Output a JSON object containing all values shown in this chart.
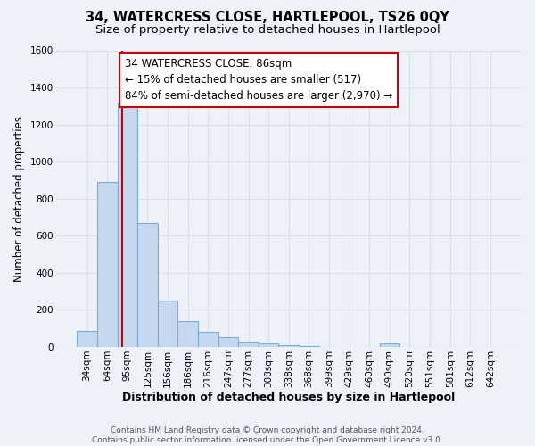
{
  "title": "34, WATERCRESS CLOSE, HARTLEPOOL, TS26 0QY",
  "subtitle": "Size of property relative to detached houses in Hartlepool",
  "xlabel": "Distribution of detached houses by size in Hartlepool",
  "ylabel": "Number of detached properties",
  "bar_labels": [
    "34sqm",
    "64sqm",
    "95sqm",
    "125sqm",
    "156sqm",
    "186sqm",
    "216sqm",
    "247sqm",
    "277sqm",
    "308sqm",
    "338sqm",
    "368sqm",
    "399sqm",
    "429sqm",
    "460sqm",
    "490sqm",
    "520sqm",
    "551sqm",
    "581sqm",
    "612sqm",
    "642sqm"
  ],
  "bar_values": [
    88,
    890,
    1320,
    670,
    250,
    140,
    80,
    52,
    30,
    20,
    10,
    5,
    0,
    0,
    0,
    18,
    0,
    0,
    0,
    0,
    0
  ],
  "bar_color": "#c5d8f0",
  "bar_edge_color": "#7aadd4",
  "vline_x": 1.72,
  "vline_color": "#cc0000",
  "annotation_line1": "34 WATERCRESS CLOSE: 86sqm",
  "annotation_line2": "← 15% of detached houses are smaller (517)",
  "annotation_line3": "84% of semi-detached houses are larger (2,970) →",
  "annotation_box_color": "#ffffff",
  "annotation_box_edge_color": "#cc0000",
  "ylim": [
    0,
    1600
  ],
  "yticks": [
    0,
    200,
    400,
    600,
    800,
    1000,
    1200,
    1400,
    1600
  ],
  "footer_text": "Contains HM Land Registry data © Crown copyright and database right 2024.\nContains public sector information licensed under the Open Government Licence v3.0.",
  "background_color": "#eef2f8",
  "grid_color": "#d8e0ee",
  "title_fontsize": 10.5,
  "subtitle_fontsize": 9.5,
  "xlabel_fontsize": 9,
  "ylabel_fontsize": 8.5,
  "tick_fontsize": 7.5,
  "annotation_fontsize": 8.5,
  "footer_fontsize": 6.5
}
